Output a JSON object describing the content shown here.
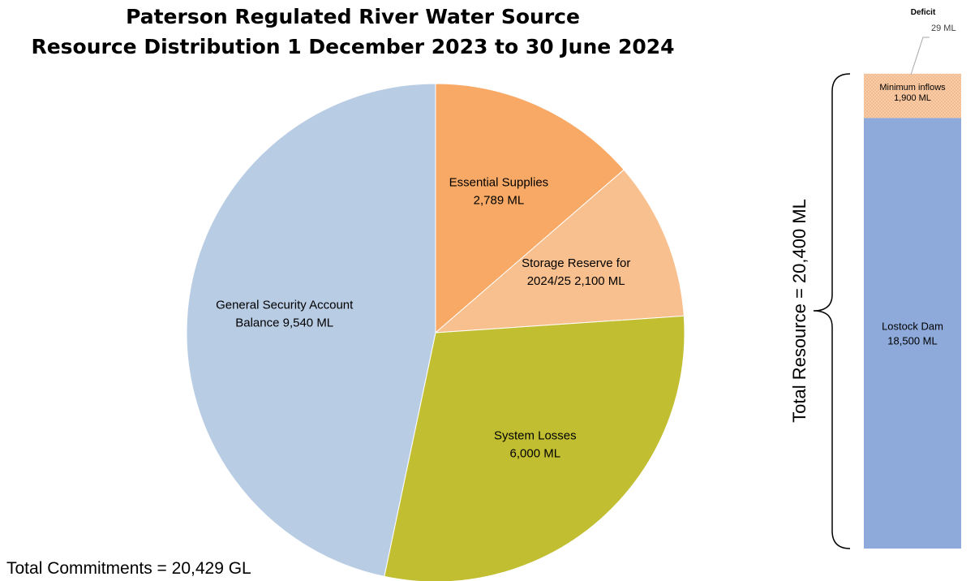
{
  "chart_data": [
    {
      "type": "pie",
      "title": [
        "Paterson Regulated River Water Source",
        "Resource Distribution 1 December 2023 to 30 June 2024"
      ],
      "slices": [
        {
          "name": "Essential Supplies",
          "label_lines": [
            "Essential Supplies",
            "2,789 ML"
          ],
          "value": 2789,
          "color": "#f8a965"
        },
        {
          "name": "Storage Reserve for 2024/25",
          "label_lines": [
            "Storage Reserve for",
            "2024/25 2,100 ML"
          ],
          "value": 2100,
          "color": "#f9c08f"
        },
        {
          "name": "System Losses",
          "label_lines": [
            "System Losses",
            "6,000 ML"
          ],
          "value": 6000,
          "color": "#c1be31"
        },
        {
          "name": "General Security Account Balance",
          "label_lines": [
            "General Security Account",
            "Balance 9,540 ML"
          ],
          "value": 9540,
          "color": "#b8cce4"
        }
      ],
      "total_label": "Total Commitments =",
      "total_value": "20,429 GL"
    },
    {
      "type": "bar",
      "stacked": true,
      "segments": [
        {
          "name": "Lostock Dam",
          "label_lines": [
            "Lostock Dam",
            "18,500 ML"
          ],
          "value": 18500,
          "color": "#8eaadb",
          "pattern": false
        },
        {
          "name": "Minimum inflows",
          "label_lines": [
            "Minimum inflows",
            "1,900 ML"
          ],
          "value": 1900,
          "color": "#f9cca6",
          "pattern": true
        },
        {
          "name": "Deficit",
          "label_lines": [
            "Deficit",
            "29 ML"
          ],
          "value": 29,
          "color": "#ffffff",
          "pattern": false
        }
      ],
      "total_label": "Total Resource =",
      "total_value": "20,400 ML"
    }
  ]
}
